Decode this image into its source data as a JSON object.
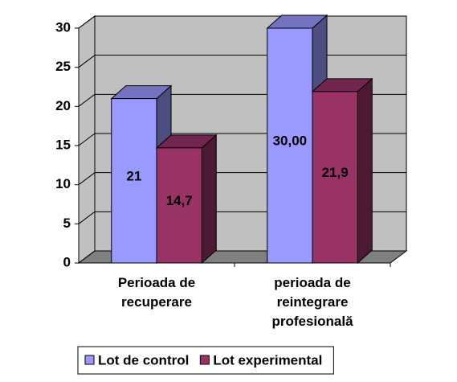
{
  "chart_data": {
    "type": "bar3d",
    "categories": [
      "Perioada de recuperare",
      "perioada de reintegrare profesională"
    ],
    "series": [
      {
        "name": "Lot de control",
        "color": "#9999ff",
        "values": [
          21,
          30
        ],
        "value_labels": [
          "21",
          "30,00"
        ]
      },
      {
        "name": "Lot experimental",
        "color": "#993366",
        "values": [
          14.7,
          21.9
        ],
        "value_labels": [
          "14,7",
          "21,9"
        ]
      }
    ],
    "ylim": [
      0,
      30
    ],
    "yticks": [
      0,
      5,
      10,
      15,
      20,
      25,
      30
    ],
    "grid": true,
    "legend": "bottom"
  }
}
